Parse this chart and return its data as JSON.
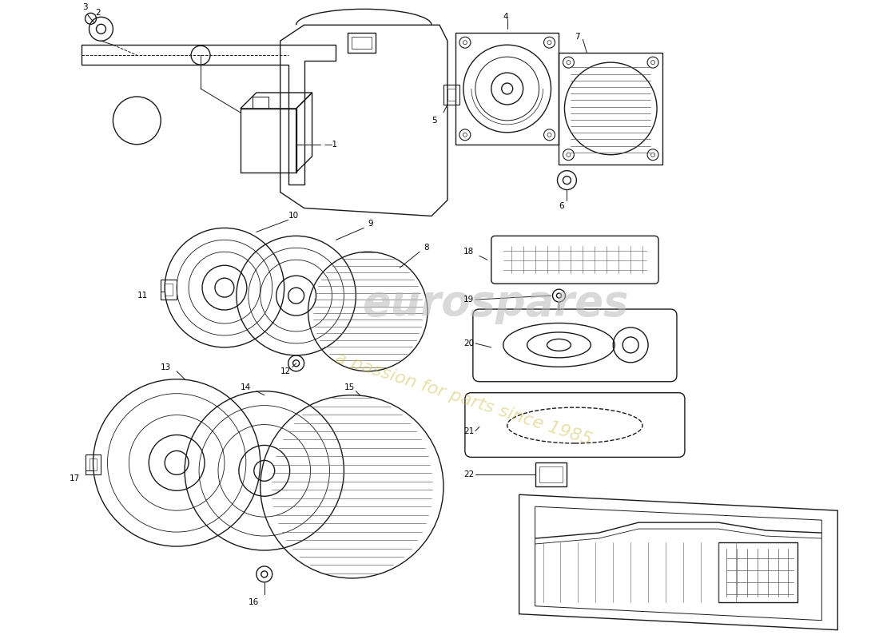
{
  "bg_color": "#ffffff",
  "line_color": "#1a1a1a",
  "watermark1": "eurospares",
  "watermark2": "a passion for parts since 1985",
  "figsize": [
    11.0,
    8.0
  ],
  "dpi": 100
}
